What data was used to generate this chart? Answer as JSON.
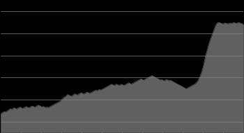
{
  "background_color": "#000000",
  "fill_color": "#606060",
  "line_color": "#606060",
  "grid_color": "#888888",
  "grid_linewidth": 0.5,
  "ylim": [
    0.3,
    0.9
  ],
  "y_values": [
    0.385,
    0.388,
    0.392,
    0.396,
    0.393,
    0.396,
    0.4,
    0.404,
    0.408,
    0.405,
    0.408,
    0.412,
    0.41,
    0.407,
    0.41,
    0.413,
    0.416,
    0.413,
    0.41,
    0.412,
    0.415,
    0.418,
    0.415,
    0.412,
    0.415,
    0.418,
    0.421,
    0.418,
    0.415,
    0.418,
    0.422,
    0.425,
    0.422,
    0.419,
    0.416,
    0.419,
    0.416,
    0.413,
    0.416,
    0.413,
    0.416,
    0.419,
    0.422,
    0.425,
    0.428,
    0.431,
    0.434,
    0.437,
    0.44,
    0.443,
    0.45,
    0.455,
    0.46,
    0.463,
    0.468,
    0.473,
    0.47,
    0.467,
    0.465,
    0.468,
    0.473,
    0.476,
    0.473,
    0.47,
    0.475,
    0.478,
    0.481,
    0.478,
    0.475,
    0.478,
    0.481,
    0.484,
    0.481,
    0.478,
    0.481,
    0.484,
    0.487,
    0.49,
    0.493,
    0.49,
    0.493,
    0.496,
    0.493,
    0.496,
    0.499,
    0.502,
    0.505,
    0.508,
    0.511,
    0.514,
    0.517,
    0.52,
    0.517,
    0.514,
    0.517,
    0.52,
    0.517,
    0.514,
    0.517,
    0.52,
    0.517,
    0.514,
    0.517,
    0.52,
    0.523,
    0.526,
    0.523,
    0.52,
    0.523,
    0.526,
    0.529,
    0.532,
    0.535,
    0.538,
    0.541,
    0.544,
    0.541,
    0.538,
    0.541,
    0.544,
    0.547,
    0.55,
    0.553,
    0.556,
    0.559,
    0.556,
    0.553,
    0.55,
    0.547,
    0.544,
    0.541,
    0.538,
    0.541,
    0.538,
    0.535,
    0.538,
    0.541,
    0.538,
    0.535,
    0.538,
    0.535,
    0.532,
    0.529,
    0.526,
    0.523,
    0.52,
    0.517,
    0.514,
    0.511,
    0.508,
    0.505,
    0.502,
    0.499,
    0.502,
    0.505,
    0.508,
    0.511,
    0.514,
    0.517,
    0.52,
    0.525,
    0.53,
    0.54,
    0.55,
    0.565,
    0.58,
    0.6,
    0.625,
    0.65,
    0.67,
    0.69,
    0.71,
    0.725,
    0.74,
    0.755,
    0.77,
    0.785,
    0.795,
    0.8,
    0.8,
    0.798,
    0.796,
    0.794,
    0.796,
    0.798,
    0.796,
    0.794,
    0.796,
    0.798,
    0.796,
    0.798,
    0.8,
    0.798,
    0.796,
    0.798,
    0.8,
    0.798,
    0.796,
    0.794,
    0.792
  ],
  "yticks": [
    0.35,
    0.45,
    0.55,
    0.65,
    0.75,
    0.85
  ],
  "num_xticks": 13,
  "figsize": [
    3.5,
    1.91
  ],
  "dpi": 100
}
